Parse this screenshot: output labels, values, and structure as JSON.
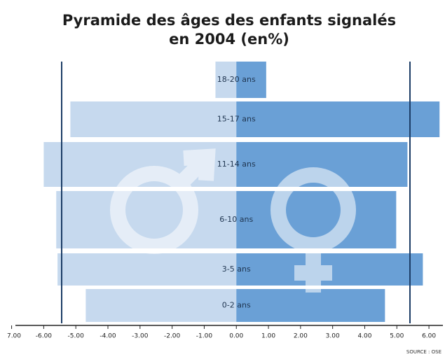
{
  "chart_data": {
    "type": "pyramid",
    "title": "Pyramide des âges des enfants signalés",
    "subtitle": "en 2004 (en%)",
    "source": "SOURCE : OSE",
    "categories": [
      "18-20 ans",
      "15-17 ans",
      "11-14 ans",
      "6-10 ans",
      "3-5 ans",
      "0-2 ans"
    ],
    "series": [
      {
        "color": "#c6d9ee",
        "values": [
          -0.65,
          -5.17,
          -6.0,
          -5.61,
          -5.57,
          -4.69
        ]
      },
      {
        "color": "#6aa0d6",
        "values": [
          0.93,
          6.33,
          5.33,
          4.98,
          5.81,
          4.63
        ]
      }
    ],
    "xlim": [
      -7.1,
      6.5
    ],
    "xticks": [
      {
        "value": -7,
        "label": "7.00"
      },
      {
        "value": -6,
        "label": "-6.00"
      },
      {
        "value": -5,
        "label": "-5.00"
      },
      {
        "value": -4,
        "label": "-4.00"
      },
      {
        "value": -3,
        "label": "-3.00"
      },
      {
        "value": -2,
        "label": "-2.00"
      },
      {
        "value": -1,
        "label": "-1.00"
      },
      {
        "value": 0,
        "label": "0.00"
      },
      {
        "value": 1,
        "label": "1.00"
      },
      {
        "value": 2,
        "label": "2.00"
      },
      {
        "value": 3,
        "label": "3.00"
      },
      {
        "value": 4,
        "label": "4.00"
      },
      {
        "value": 5,
        "label": "5.00"
      },
      {
        "value": 6,
        "label": "6.00"
      }
    ]
  }
}
